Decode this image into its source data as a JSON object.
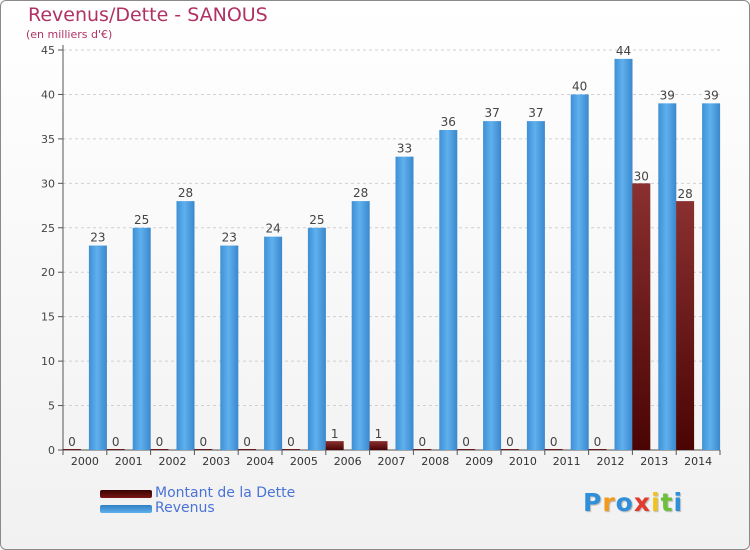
{
  "title": "Revenus/Dette - SANOUS",
  "subtitle": "(en milliers d'€)",
  "chart_data": {
    "type": "bar",
    "categories": [
      "2000",
      "2001",
      "2002",
      "2003",
      "2004",
      "2005",
      "2006",
      "2007",
      "2008",
      "2009",
      "2010",
      "2011",
      "2012",
      "2013",
      "2014"
    ],
    "series": [
      {
        "name": "Montant de la Dette",
        "color": "#6b0a0a",
        "values": [
          0,
          0,
          0,
          0,
          0,
          0,
          1,
          1,
          0,
          0,
          0,
          0,
          0,
          30,
          28
        ],
        "labels": [
          "0",
          "0",
          "0",
          "0",
          "0",
          "0",
          "1",
          "1",
          "0",
          "0",
          "0",
          "0",
          "0",
          "30",
          "28"
        ]
      },
      {
        "name": "Revenus",
        "color": "#4ea3e4",
        "values": [
          23,
          25,
          28,
          23,
          24,
          25,
          28,
          33,
          36,
          37,
          37,
          40,
          44,
          39,
          39
        ],
        "labels": [
          "23",
          "25",
          "28",
          "23",
          "24",
          "25",
          "28",
          "33",
          "36",
          "37",
          "37",
          "40",
          "44",
          "39",
          "39"
        ]
      }
    ],
    "y_ticks": [
      "0",
      "5",
      "10",
      "15",
      "20",
      "25",
      "30",
      "35",
      "40",
      "45"
    ],
    "ylim": [
      0,
      45
    ],
    "grid": true,
    "legend_position": "bottom-left"
  },
  "legend": {
    "items": [
      {
        "label": "Montant de la Dette",
        "color": "#6b0a0a"
      },
      {
        "label": "Revenus",
        "color": "#4ea3e4"
      }
    ]
  },
  "logo": {
    "letters": [
      "P",
      "r",
      "o",
      "x",
      "i",
      "t",
      "i"
    ],
    "colors": [
      "#2f8fd8",
      "#f29a1c",
      "#2f8fd8",
      "#e23b2e",
      "#f2c21c",
      "#6bbf3a",
      "#2f8fd8"
    ]
  }
}
